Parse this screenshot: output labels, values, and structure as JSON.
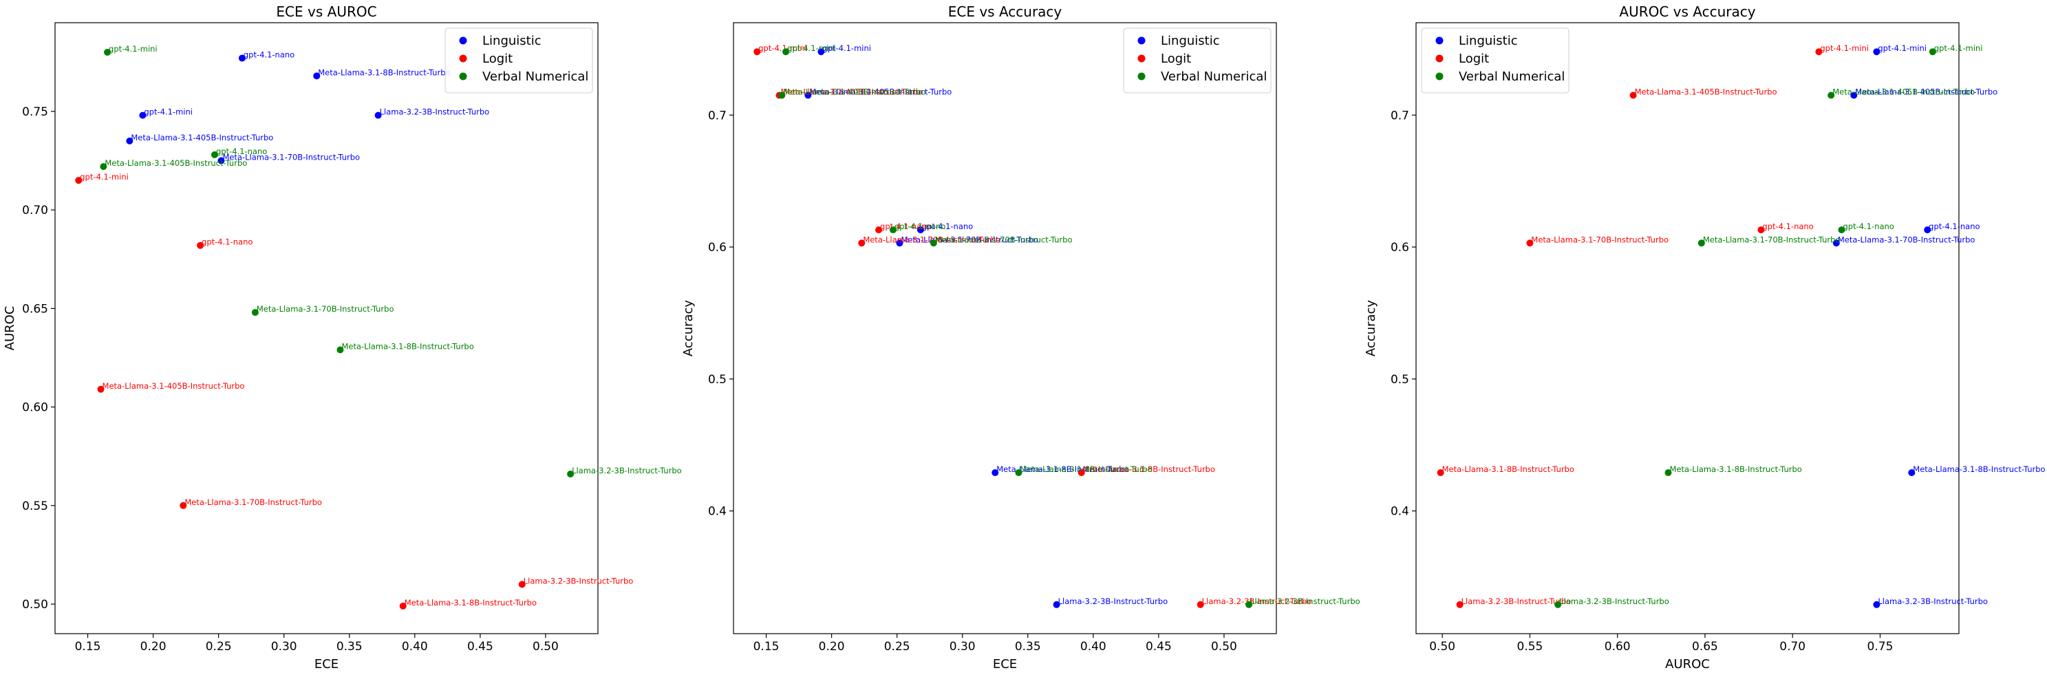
{
  "colors": {
    "Linguistic": "#0000ff",
    "Logit": "#ff0000",
    "Verbal Numerical": "#008000",
    "axis": "#000000"
  },
  "chart_data": [
    {
      "type": "scatter",
      "title": "ECE vs AUROC",
      "xlabel": "ECE",
      "ylabel": "AUROC",
      "xlim": [
        0.125,
        0.54
      ],
      "ylim": [
        0.485,
        0.795
      ],
      "xticks": [
        "0.15",
        "0.20",
        "0.25",
        "0.30",
        "0.35",
        "0.40",
        "0.45",
        "0.50"
      ],
      "yticks": [
        "0.50",
        "0.55",
        "0.60",
        "0.65",
        "0.70",
        "0.75"
      ],
      "grid": false,
      "legend_position": "top-right",
      "series": [
        {
          "name": "Linguistic",
          "points": [
            {
              "x": 0.268,
              "y": 0.777,
              "label": "gpt-4.1-nano"
            },
            {
              "x": 0.325,
              "y": 0.768,
              "label": "Meta-Llama-3.1-8B-Instruct-Turbo"
            },
            {
              "x": 0.192,
              "y": 0.748,
              "label": "gpt-4.1-mini"
            },
            {
              "x": 0.372,
              "y": 0.748,
              "label": "Llama-3.2-3B-Instruct-Turbo"
            },
            {
              "x": 0.182,
              "y": 0.735,
              "label": "Meta-Llama-3.1-405B-Instruct-Turbo"
            },
            {
              "x": 0.252,
              "y": 0.725,
              "label": "Meta-Llama-3.1-70B-Instruct-Turbo"
            }
          ]
        },
        {
          "name": "Logit",
          "points": [
            {
              "x": 0.143,
              "y": 0.715,
              "label": "gpt-4.1-mini"
            },
            {
              "x": 0.236,
              "y": 0.682,
              "label": "gpt-4.1-nano"
            },
            {
              "x": 0.16,
              "y": 0.609,
              "label": "Meta-Llama-3.1-405B-Instruct-Turbo"
            },
            {
              "x": 0.223,
              "y": 0.55,
              "label": "Meta-Llama-3.1-70B-Instruct-Turbo"
            },
            {
              "x": 0.482,
              "y": 0.51,
              "label": "Llama-3.2-3B-Instruct-Turbo"
            },
            {
              "x": 0.391,
              "y": 0.499,
              "label": "Meta-Llama-3.1-8B-Instruct-Turbo"
            }
          ]
        },
        {
          "name": "Verbal Numerical",
          "points": [
            {
              "x": 0.165,
              "y": 0.78,
              "label": "gpt-4.1-mini"
            },
            {
              "x": 0.247,
              "y": 0.728,
              "label": "gpt-4.1-nano"
            },
            {
              "x": 0.162,
              "y": 0.722,
              "label": "Meta-Llama-3.1-405B-Instruct-Turbo"
            },
            {
              "x": 0.278,
              "y": 0.648,
              "label": "Meta-Llama-3.1-70B-Instruct-Turbo"
            },
            {
              "x": 0.343,
              "y": 0.629,
              "label": "Meta-Llama-3.1-8B-Instruct-Turbo"
            },
            {
              "x": 0.519,
              "y": 0.566,
              "label": "Llama-3.2-3B-Instruct-Turbo"
            }
          ]
        }
      ]
    },
    {
      "type": "scatter",
      "title": "ECE vs Accuracy",
      "xlabel": "ECE",
      "ylabel": "Accuracy",
      "xlim": [
        0.125,
        0.54
      ],
      "ylim": [
        0.307,
        0.77
      ],
      "xticks": [
        "0.15",
        "0.20",
        "0.25",
        "0.30",
        "0.35",
        "0.40",
        "0.45",
        "0.50"
      ],
      "yticks": [
        "0.4",
        "0.5",
        "0.6",
        "0.7"
      ],
      "grid": false,
      "legend_position": "top-right",
      "series": [
        {
          "name": "Linguistic",
          "points": [
            {
              "x": 0.192,
              "y": 0.748,
              "label": "gpt-4.1-mini"
            },
            {
              "x": 0.182,
              "y": 0.715,
              "label": "Meta-Llama-3.1-405B-Instruct-Turbo"
            },
            {
              "x": 0.268,
              "y": 0.613,
              "label": "gpt-4.1-nano"
            },
            {
              "x": 0.252,
              "y": 0.603,
              "label": "Meta-Llama-3.1-70B-Instruct-Turbo"
            },
            {
              "x": 0.325,
              "y": 0.429,
              "label": "Meta-Llama-3.1-8B-Instruct-Turbo"
            },
            {
              "x": 0.372,
              "y": 0.329,
              "label": "Llama-3.2-3B-Instruct-Turbo"
            }
          ]
        },
        {
          "name": "Logit",
          "points": [
            {
              "x": 0.143,
              "y": 0.748,
              "label": "gpt-4.1-mini"
            },
            {
              "x": 0.16,
              "y": 0.715,
              "label": "Meta-Llama-3.1-405B-Instruct-Turbo"
            },
            {
              "x": 0.236,
              "y": 0.613,
              "label": "gpt-4.1-nano"
            },
            {
              "x": 0.223,
              "y": 0.603,
              "label": "Meta-Llama-3.1-70B-Instruct-Turbo"
            },
            {
              "x": 0.391,
              "y": 0.429,
              "label": "Meta-Llama-3.1-8B-Instruct-Turbo"
            },
            {
              "x": 0.482,
              "y": 0.329,
              "label": "Llama-3.2-3B-Instruct-Turbo"
            }
          ]
        },
        {
          "name": "Verbal Numerical",
          "points": [
            {
              "x": 0.165,
              "y": 0.748,
              "label": "gpt-4.1-mini"
            },
            {
              "x": 0.162,
              "y": 0.715,
              "label": "Meta-Llama-3.1-405B-Instruct-Turbo"
            },
            {
              "x": 0.247,
              "y": 0.613,
              "label": "gpt-4.1-nano"
            },
            {
              "x": 0.278,
              "y": 0.603,
              "label": "Meta-Llama-3.1-70B-Instruct-Turbo"
            },
            {
              "x": 0.343,
              "y": 0.429,
              "label": "Meta-Llama-3.1-8B-Instruct-Turbo"
            },
            {
              "x": 0.519,
              "y": 0.329,
              "label": "Llama-3.2-3B-Instruct-Turbo"
            }
          ]
        }
      ]
    },
    {
      "type": "scatter",
      "title": "AUROC vs Accuracy",
      "xlabel": "AUROC",
      "ylabel": "Accuracy",
      "xlim": [
        0.485,
        0.795
      ],
      "ylim": [
        0.307,
        0.77
      ],
      "xticks": [
        "0.50",
        "0.55",
        "0.60",
        "0.65",
        "0.70",
        "0.75"
      ],
      "yticks": [
        "0.4",
        "0.5",
        "0.6",
        "0.7"
      ],
      "grid": false,
      "legend_position": "top-left",
      "series": [
        {
          "name": "Linguistic",
          "points": [
            {
              "x": 0.748,
              "y": 0.748,
              "label": "gpt-4.1-mini"
            },
            {
              "x": 0.735,
              "y": 0.715,
              "label": "Meta-Llama-3.1-405B-Instruct-Turbo"
            },
            {
              "x": 0.777,
              "y": 0.613,
              "label": "gpt-4.1-nano"
            },
            {
              "x": 0.725,
              "y": 0.603,
              "label": "Meta-Llama-3.1-70B-Instruct-Turbo"
            },
            {
              "x": 0.768,
              "y": 0.429,
              "label": "Meta-Llama-3.1-8B-Instruct-Turbo"
            },
            {
              "x": 0.748,
              "y": 0.329,
              "label": "Llama-3.2-3B-Instruct-Turbo"
            }
          ]
        },
        {
          "name": "Logit",
          "points": [
            {
              "x": 0.715,
              "y": 0.748,
              "label": "gpt-4.1-mini"
            },
            {
              "x": 0.609,
              "y": 0.715,
              "label": "Meta-Llama-3.1-405B-Instruct-Turbo"
            },
            {
              "x": 0.682,
              "y": 0.613,
              "label": "gpt-4.1-nano"
            },
            {
              "x": 0.55,
              "y": 0.603,
              "label": "Meta-Llama-3.1-70B-Instruct-Turbo"
            },
            {
              "x": 0.499,
              "y": 0.429,
              "label": "Meta-Llama-3.1-8B-Instruct-Turbo"
            },
            {
              "x": 0.51,
              "y": 0.329,
              "label": "Llama-3.2-3B-Instruct-Turbo"
            }
          ]
        },
        {
          "name": "Verbal Numerical",
          "points": [
            {
              "x": 0.78,
              "y": 0.748,
              "label": "gpt-4.1-mini"
            },
            {
              "x": 0.722,
              "y": 0.715,
              "label": "Meta-Llama-3.1-405B-Instruct-Turbo"
            },
            {
              "x": 0.728,
              "y": 0.613,
              "label": "gpt-4.1-nano"
            },
            {
              "x": 0.648,
              "y": 0.603,
              "label": "Meta-Llama-3.1-70B-Instruct-Turbo"
            },
            {
              "x": 0.629,
              "y": 0.429,
              "label": "Meta-Llama-3.1-8B-Instruct-Turbo"
            },
            {
              "x": 0.566,
              "y": 0.329,
              "label": "Llama-3.2-3B-Instruct-Turbo"
            }
          ]
        }
      ]
    }
  ]
}
